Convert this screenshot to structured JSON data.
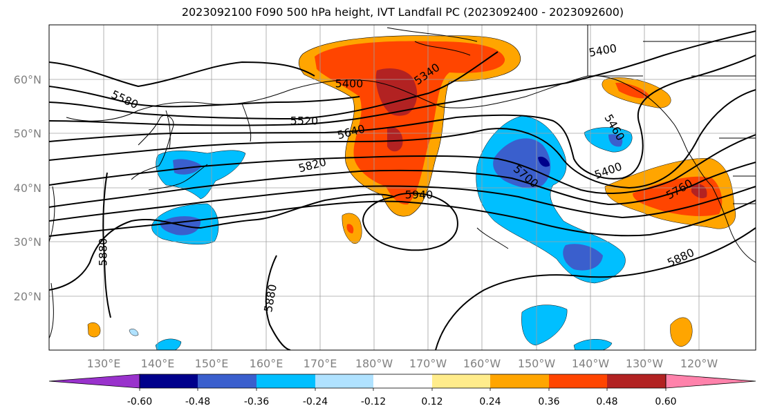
{
  "title": "2023092100 F090 500 hPa height, IVT Landfall PC (2023092400 - 2023092600)",
  "map": {
    "lat_ticks": [
      "20°N",
      "30°N",
      "40°N",
      "50°N",
      "60°N"
    ],
    "lon_ticks": [
      "130°E",
      "140°E",
      "150°E",
      "160°E",
      "170°E",
      "180°W",
      "170°W",
      "160°W",
      "150°W",
      "140°W",
      "130°W",
      "120°W"
    ],
    "label_color": "#808080"
  },
  "contour_labels": [
    "5580",
    "5400",
    "5340",
    "5520",
    "5640",
    "5820",
    "5940",
    "5400",
    "5460",
    "5400",
    "5700",
    "5760",
    "5880",
    "5880",
    "5880"
  ],
  "colorbar": {
    "ticks": [
      "-0.60",
      "-0.48",
      "-0.36",
      "-0.24",
      "-0.12",
      "0.12",
      "0.24",
      "0.36",
      "0.48",
      "0.60"
    ],
    "colors": [
      "#9932cc",
      "#00008b",
      "#3a5fcd",
      "#00bfff",
      "#b0e2ff",
      "#ffffff",
      "#ffec8b",
      "#ffa500",
      "#ff4500",
      "#b22222",
      "#ff82ab"
    ]
  },
  "fill_colors": {
    "orange": "#ffa500",
    "red_orange": "#ff4500",
    "dark_red": "#b22222",
    "light_yellow": "#ffec8b",
    "sky": "#00bfff",
    "royal": "#3a5fcd",
    "navy": "#00008b",
    "pale_blue": "#b0e2ff"
  }
}
